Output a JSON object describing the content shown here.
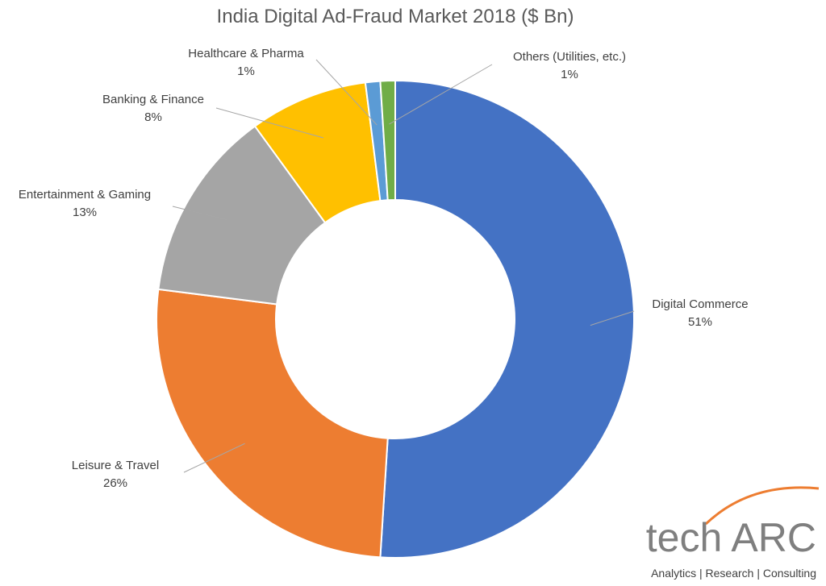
{
  "chart_data": {
    "type": "pie",
    "title": "India Digital Ad-Fraud Market 2018 ($ Bn)",
    "donut": true,
    "slices": [
      {
        "label": "Digital Commerce",
        "value": 51,
        "value_label": "51%",
        "color": "#4472C4"
      },
      {
        "label": "Leisure & Travel",
        "value": 26,
        "value_label": "26%",
        "color": "#ED7D31"
      },
      {
        "label": "Entertainment & Gaming",
        "value": 13,
        "value_label": "13%",
        "color": "#A5A5A5"
      },
      {
        "label": "Banking & Finance",
        "value": 8,
        "value_label": "8%",
        "color": "#FFC000"
      },
      {
        "label": "Healthcare & Pharma",
        "value": 1,
        "value_label": "1%",
        "color": "#5B9BD5"
      },
      {
        "label": "Others (Utilities, etc.)",
        "value": 1,
        "value_label": "1%",
        "color": "#70AD47"
      }
    ]
  },
  "logo": {
    "name": "tech ARC",
    "tagline": "Analytics | Research | Consulting",
    "accent_color": "#ED7D31"
  }
}
